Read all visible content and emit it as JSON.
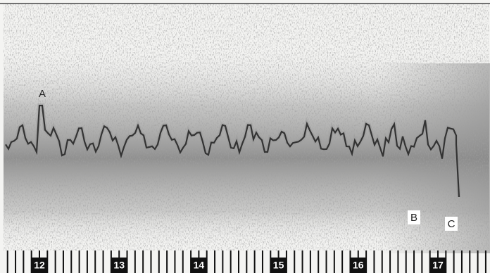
{
  "markers": [
    "A",
    "B",
    "C"
  ],
  "axis": {
    "ticks": [
      12,
      13,
      14,
      15,
      16,
      17
    ]
  }
}
